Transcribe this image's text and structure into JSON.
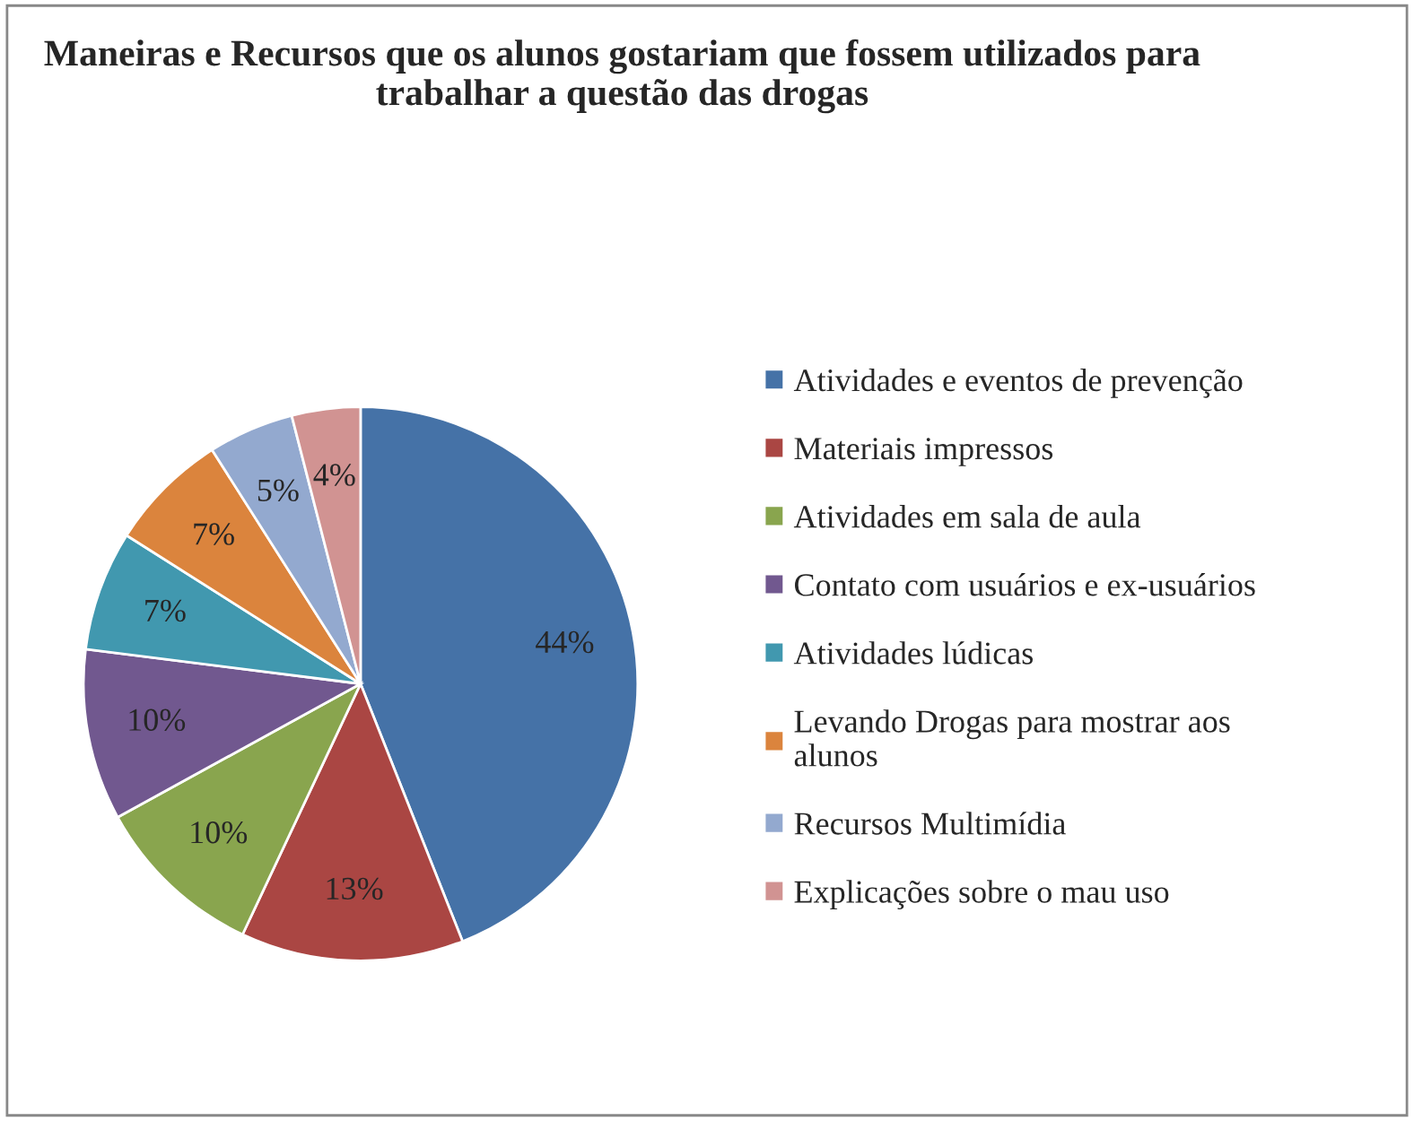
{
  "chart_data": {
    "type": "pie",
    "title": "Maneiras e Recursos que os alunos gostariam que fossem utilizados para trabalhar a questão das drogas",
    "categories": [
      "Atividades e eventos de prevenção",
      "Materiais impressos",
      "Atividades em sala de aula",
      "Contato com usuários e ex-usuários",
      "Atividades lúdicas",
      "Levando Drogas para mostrar aos alunos",
      "Recursos Multimídia",
      "Explicações sobre o mau uso"
    ],
    "values": [
      44,
      13,
      10,
      10,
      7,
      7,
      5,
      4
    ],
    "value_labels": [
      "44%",
      "13%",
      "10%",
      "10%",
      "7%",
      "7%",
      "5%",
      "4%"
    ],
    "colors": [
      "#4572a7",
      "#aa4643",
      "#89a54e",
      "#71588f",
      "#4198af",
      "#db843d",
      "#93a9cf",
      "#d19392"
    ],
    "legend": "right"
  }
}
